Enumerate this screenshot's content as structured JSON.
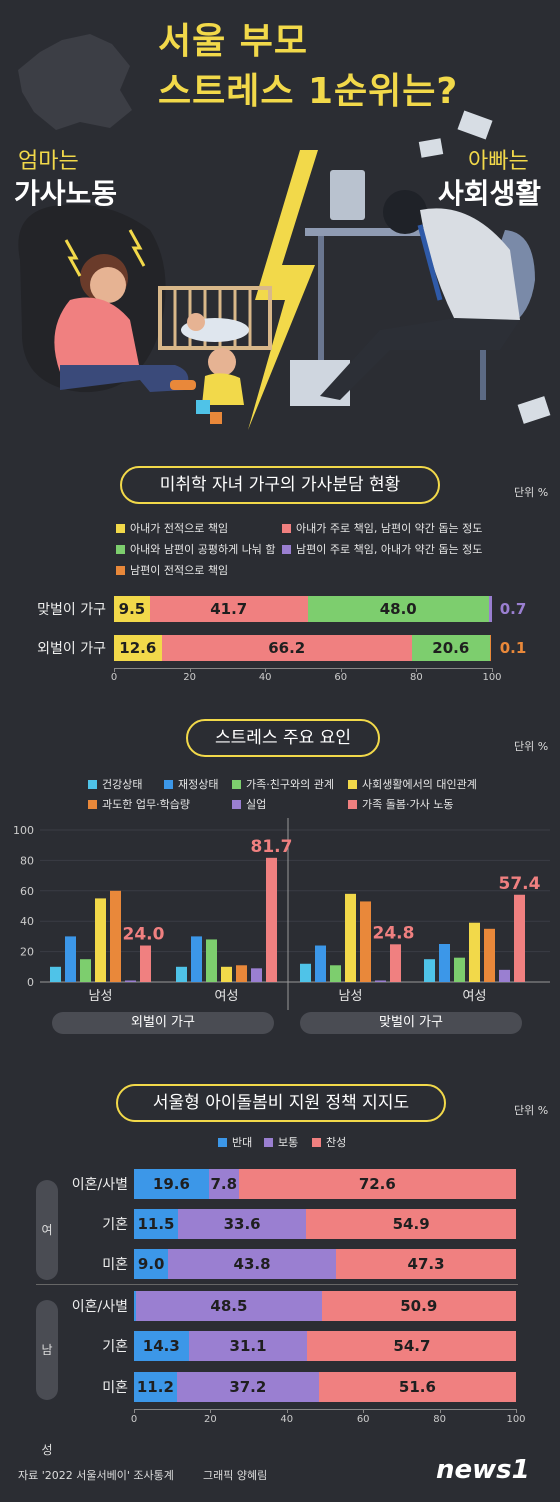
{
  "header": {
    "title_line1": "서울 부모",
    "title_line2": "스트레스 1순위는?",
    "mom_small": "엄마는",
    "mom_big": "가사노동",
    "dad_small": "아빠는",
    "dad_big": "사회생활"
  },
  "colors": {
    "yellow": "#f2d94a",
    "pink": "#f08080",
    "green": "#7dce6e",
    "purple": "#9a7fd1",
    "orange": "#e9883a",
    "blue": "#3c97e8",
    "cyan": "#4fc3e8"
  },
  "section1": {
    "title": "미취학 자녀 가구의 가사분담 현황",
    "unit": "단위 %",
    "legend": [
      {
        "label": "아내가 전적으로 책임",
        "color": "#f2d94a"
      },
      {
        "label": "아내가 주로 책임, 남편이 약간 돕는 정도",
        "color": "#f08080"
      },
      {
        "label": "아내와 남편이 공평하게 나눠 함",
        "color": "#7dce6e"
      },
      {
        "label": "남편이 주로 책임, 아내가 약간 돕는 정도",
        "color": "#9a7fd1"
      },
      {
        "label": "남편이 전적으로 책임",
        "color": "#e9883a"
      }
    ],
    "ticks": [
      "0",
      "20",
      "40",
      "60",
      "80",
      "100"
    ]
  },
  "section2": {
    "title": "스트레스 주요 요인",
    "unit": "단위 %",
    "legend": [
      {
        "label": "건강상태",
        "color": "#4fc3e8"
      },
      {
        "label": "재정상태",
        "color": "#3c97e8"
      },
      {
        "label": "가족·친구와의 관계",
        "color": "#7dce6e"
      },
      {
        "label": "사회생활에서의 대인관계",
        "color": "#f2d94a"
      },
      {
        "label": "과도한 업무·학습량",
        "color": "#e9883a"
      },
      {
        "label": "실업",
        "color": "#9a7fd1"
      },
      {
        "label": "가족 돌봄·가사 노동",
        "color": "#f08080"
      }
    ],
    "yticks": [
      "0",
      "20",
      "40",
      "60",
      "80",
      "100"
    ],
    "group_labels": [
      "외벌이 가구",
      "맞벌이 가구"
    ]
  },
  "section3": {
    "title": "서울형 아이돌봄비 지원 정책 지지도",
    "unit": "단위 %",
    "legend": [
      {
        "label": "반대",
        "color": "#3c97e8"
      },
      {
        "label": "보통",
        "color": "#9a7fd1"
      },
      {
        "label": "찬성",
        "color": "#f08080"
      }
    ],
    "sex_labels": [
      "여성",
      "남성"
    ],
    "ticks": [
      "0",
      "20",
      "40",
      "60",
      "80",
      "100"
    ]
  },
  "footer": {
    "source": "자료 '2022 서울서베이' 조사통계",
    "graphic": "그래픽 양혜림",
    "brand": "news1"
  },
  "chart_data": [
    {
      "type": "bar",
      "orientation": "horizontal-stacked",
      "title": "미취학 자녀 가구의 가사분담 현황",
      "categories": [
        "맞벌이 가구",
        "외벌이 가구"
      ],
      "series": [
        {
          "name": "아내가 전적으로 책임",
          "values": [
            9.5,
            12.6
          ]
        },
        {
          "name": "아내가 주로 책임, 남편이 약간 돕는 정도",
          "values": [
            41.7,
            66.2
          ]
        },
        {
          "name": "아내와 남편이 공평하게 나눠 함",
          "values": [
            48.0,
            20.6
          ]
        },
        {
          "name": "남편이 주로 책임, 아내가 약간 돕는 정도",
          "values": [
            0.7,
            0
          ]
        },
        {
          "name": "남편이 전적으로 책임",
          "values": [
            0,
            0.1
          ]
        }
      ],
      "xlim": [
        0,
        100
      ]
    },
    {
      "type": "bar",
      "title": "스트레스 주요 요인",
      "categories": [
        "외벌이 가구 남성",
        "외벌이 가구 여성",
        "맞벌이 가구 남성",
        "맞벌이 가구 여성"
      ],
      "tick_labels": [
        "남성",
        "여성",
        "남성",
        "여성"
      ],
      "series": [
        {
          "name": "건강상태",
          "values": [
            10,
            10,
            12,
            15
          ]
        },
        {
          "name": "재정상태",
          "values": [
            30,
            30,
            24,
            25
          ]
        },
        {
          "name": "가족·친구와의 관계",
          "values": [
            15,
            28,
            11,
            16
          ]
        },
        {
          "name": "사회생활에서의 대인관계",
          "values": [
            55,
            10,
            58,
            39
          ]
        },
        {
          "name": "과도한 업무·학습량",
          "values": [
            60,
            11,
            53,
            35
          ]
        },
        {
          "name": "실업",
          "values": [
            1,
            9,
            1,
            8
          ]
        },
        {
          "name": "가족 돌봄·가사 노동",
          "values": [
            24.0,
            81.7,
            24.8,
            57.4
          ]
        }
      ],
      "labeled_series": "가족 돌봄·가사 노동",
      "ylim": [
        0,
        100
      ]
    },
    {
      "type": "bar",
      "orientation": "horizontal-stacked",
      "title": "서울형 아이돌봄비 지원 정책 지지도",
      "categories": [
        "여성 이혼/사별",
        "여성 기혼",
        "여성 미혼",
        "남성 이혼/사별",
        "남성 기혼",
        "남성 미혼"
      ],
      "row_labels": [
        "이혼/사별",
        "기혼",
        "미혼",
        "이혼/사별",
        "기혼",
        "미혼"
      ],
      "series": [
        {
          "name": "반대",
          "values": [
            19.6,
            11.5,
            9.0,
            0.6,
            14.3,
            11.2
          ]
        },
        {
          "name": "보통",
          "values": [
            7.8,
            33.6,
            43.8,
            48.5,
            31.1,
            37.2
          ]
        },
        {
          "name": "찬성",
          "values": [
            72.6,
            54.9,
            47.3,
            50.9,
            54.7,
            51.6
          ]
        }
      ],
      "xlim": [
        0,
        100
      ]
    }
  ]
}
